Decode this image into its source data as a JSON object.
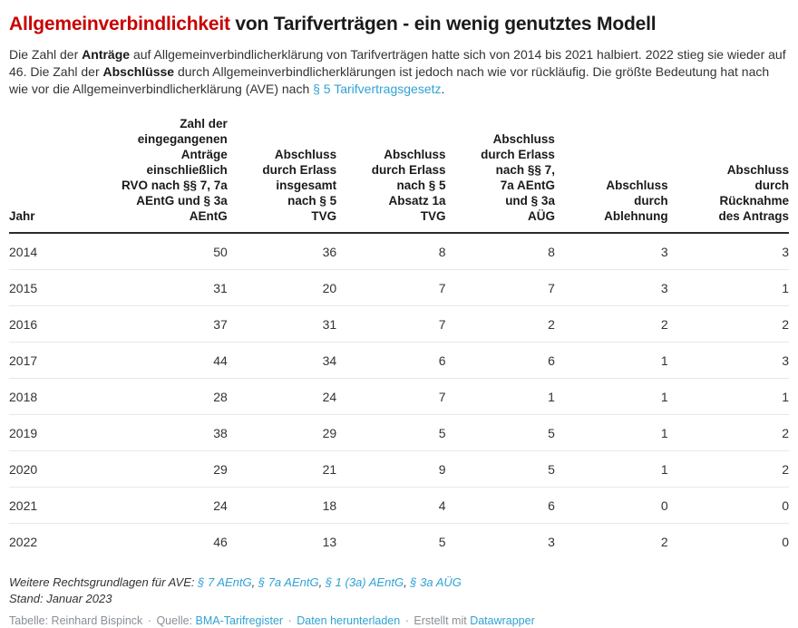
{
  "colors": {
    "accent_red": "#c90000",
    "link_blue": "#31a2d3",
    "title_text": "#1a1a1a",
    "body_text": "#333333",
    "byline_gray": "#8a8f94",
    "row_divider": "#e8e8e8",
    "header_rule": "#2b2b2b"
  },
  "header": {
    "title_highlight": "Allgemeinverbindlichkeit",
    "title_rest": " von Tarifverträgen - ein wenig genutztes Modell",
    "description": {
      "part1": "Die Zahl der ",
      "bold1": "Anträge",
      "part2": " auf Allgemeinverbindlicherklärung von Tarifverträgen hatte sich von 2014 bis 2021 halbiert. 2022 stieg sie wieder auf 46. Die Zahl der ",
      "bold2": "Abschlüsse",
      "part3": " durch Allgemeinverbindlicherklärungen ist jedoch nach wie vor rückläufig. Die größte Bedeutung hat nach wie vor die Allgemeinverbindlicherklärung (AVE) nach ",
      "link": "§ 5 Tarifvertragsgesetz",
      "part4": "."
    }
  },
  "table": {
    "columns": [
      "Jahr",
      "Zahl der\neingegangenen\nAnträge\neinschließlich\nRVO nach §§ 7, 7a\nAEntG und § 3a\nAEntG",
      "Abschluss\ndurch Erlass\ninsgesamt\nnach § 5\nTVG",
      "Abschluss\ndurch Erlass\nnach § 5\nAbsatz 1a\nTVG",
      "Abschluss\ndurch Erlass\nnach §§ 7,\n7a AEntG\nund § 3a\nAÜG",
      "Abschluss\ndurch\nAblehnung",
      "Abschluss\ndurch\nRücknahme\ndes Antrags"
    ]
  },
  "chart_data": {
    "type": "table",
    "title": "Allgemeinverbindlichkeit von Tarifverträgen - ein wenig genutztes Modell",
    "columns": [
      "Jahr",
      "Zahl der eingegangenen Anträge einschließlich RVO nach §§ 7, 7a AEntG und § 3a AEntG",
      "Abschluss durch Erlass insgesamt nach § 5 TVG",
      "Abschluss durch Erlass nach § 5 Absatz 1a TVG",
      "Abschluss durch Erlass nach §§ 7, 7a AEntG und § 3a AÜG",
      "Abschluss durch Ablehnung",
      "Abschluss durch Rücknahme des Antrags"
    ],
    "rows": [
      [
        2014,
        50,
        36,
        8,
        8,
        3,
        3
      ],
      [
        2015,
        31,
        20,
        7,
        7,
        3,
        1
      ],
      [
        2016,
        37,
        31,
        7,
        2,
        2,
        2
      ],
      [
        2017,
        44,
        34,
        6,
        6,
        1,
        3
      ],
      [
        2018,
        28,
        24,
        7,
        1,
        1,
        1
      ],
      [
        2019,
        38,
        29,
        5,
        5,
        1,
        2
      ],
      [
        2020,
        29,
        21,
        9,
        5,
        1,
        2
      ],
      [
        2021,
        24,
        18,
        4,
        6,
        0,
        0
      ],
      [
        2022,
        46,
        13,
        5,
        3,
        2,
        0
      ]
    ]
  },
  "footer": {
    "notes_prefix": "Weitere Rechtsgrundlagen für AVE: ",
    "note_links": [
      "§ 7 AEntG",
      "§ 7a AEntG",
      "§ 1 (3a) AEntG",
      "§ 3a AÜG"
    ],
    "note_separator": ", ",
    "stand": "Stand: Januar 2023",
    "byline": {
      "tabelle": "Tabelle: Reinhard Bispinck",
      "sep": "·",
      "quelle_label": "Quelle:",
      "quelle_link": "BMA-Tarifregister",
      "download_link": "Daten herunterladen",
      "created_label": "Erstellt mit",
      "created_link": "Datawrapper"
    }
  }
}
